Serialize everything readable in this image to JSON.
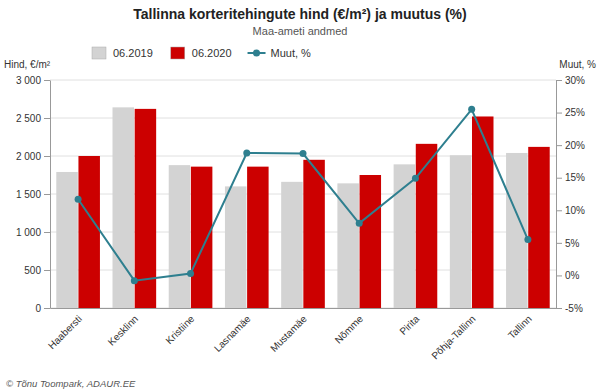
{
  "chart_data": {
    "type": "bar",
    "title": "Tallinna korteritehingute hind (€/m²) ja muutus (%)",
    "subtitle": "Maa-ameti andmed",
    "ylabel": "Hind, €/m²",
    "y2label": "Muut, %",
    "annotations": [
      "© Tõnu Toompark, ADAUR.EE"
    ],
    "categories": [
      "Haabersti",
      "Kesklinn",
      "Kristiine",
      "Lasnamäe",
      "Mustamäe",
      "Nõmme",
      "Pirita",
      "Põhja-Tallinn",
      "Tallinn"
    ],
    "series": [
      {
        "name": "06.2019",
        "type": "bar",
        "color": "#d3d3d3",
        "values": [
          1790,
          2640,
          1880,
          1600,
          1660,
          1640,
          1890,
          2010,
          2040
        ]
      },
      {
        "name": "06.2020",
        "type": "bar",
        "color": "#cc0000",
        "values": [
          2000,
          2620,
          1860,
          1860,
          1950,
          1750,
          2160,
          2520,
          2120
        ]
      },
      {
        "name": "Muut, %",
        "type": "line",
        "axis": "y2",
        "marker": "circle",
        "color": "#2e7f8f",
        "values": [
          11.7,
          -0.8,
          0.3,
          18.8,
          18.7,
          8.0,
          14.9,
          25.5,
          5.5
        ]
      }
    ],
    "ylim": [
      0,
      3000
    ],
    "yticks": [
      0,
      500,
      {
        "value": 1000,
        "label": "1 000"
      },
      {
        "value": 1500,
        "label": "1 500"
      },
      {
        "value": 2000,
        "label": "2 000"
      },
      {
        "value": 2500,
        "label": "2 500"
      },
      {
        "value": 3000,
        "label": "3 000"
      }
    ],
    "y2lim": [
      -5,
      30
    ],
    "y2ticks": [
      {
        "value": -5,
        "label": "-5%"
      },
      {
        "value": 0,
        "label": "0%"
      },
      {
        "value": 5,
        "label": "5%"
      },
      {
        "value": 10,
        "label": "10%"
      },
      {
        "value": 15,
        "label": "15%"
      },
      {
        "value": 20,
        "label": "20%"
      },
      {
        "value": 25,
        "label": "25%"
      },
      {
        "value": 30,
        "label": "30%"
      }
    ],
    "grid": true,
    "legend": "upper left"
  }
}
